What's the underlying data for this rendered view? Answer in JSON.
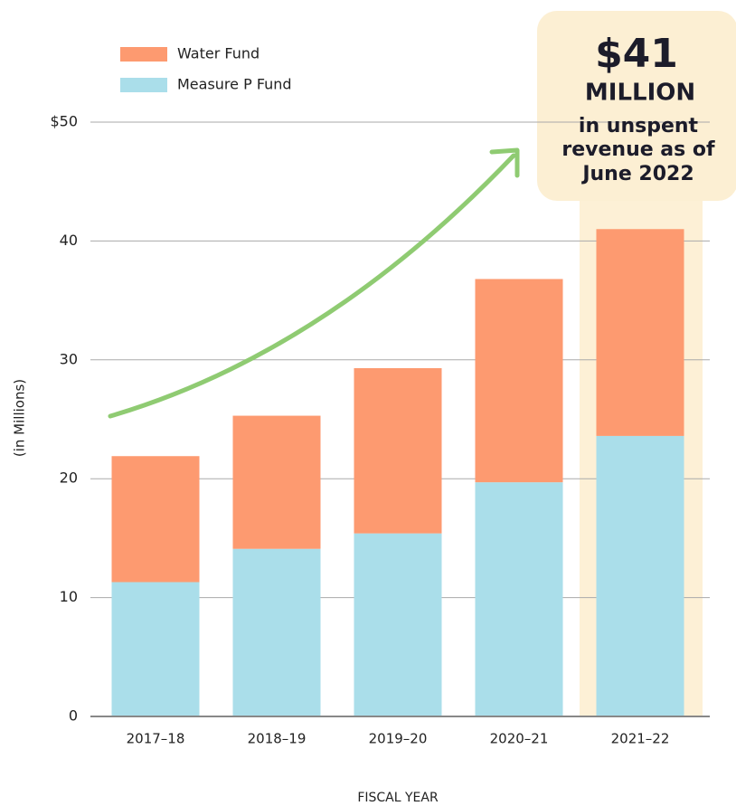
{
  "chart_data": {
    "type": "stacked_bar",
    "categories": [
      "2017–18",
      "2018–19",
      "2019–20",
      "2020–21",
      "2021–22"
    ],
    "series": [
      {
        "name": "Measure P Fund",
        "color": "#aadeea",
        "values": [
          11.3,
          14.1,
          15.4,
          19.7,
          23.6
        ]
      },
      {
        "name": "Water Fund",
        "color": "#fd9a70",
        "values": [
          10.6,
          11.2,
          13.9,
          17.1,
          17.4
        ]
      }
    ],
    "ylim": [
      0,
      50
    ],
    "yticks": [
      0,
      10,
      20,
      30,
      40,
      {
        "value": 50,
        "label": "$50"
      }
    ],
    "grid": true,
    "y_label": "(in Millions)",
    "x_label": "FISCAL YEAR",
    "annotation": {
      "amount": "$41",
      "unit": "MILLION",
      "lines": [
        "in unspent",
        "revenue as of",
        "June 2022"
      ]
    }
  }
}
